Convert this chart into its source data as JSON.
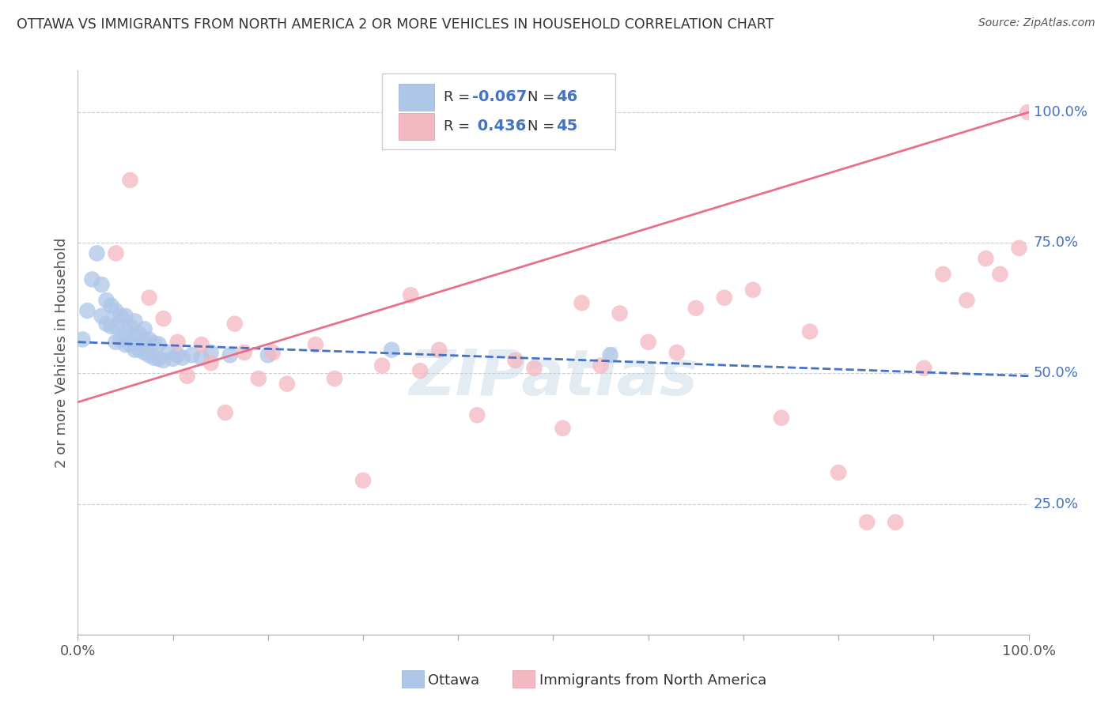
{
  "title": "OTTAWA VS IMMIGRANTS FROM NORTH AMERICA 2 OR MORE VEHICLES IN HOUSEHOLD CORRELATION CHART",
  "source": "Source: ZipAtlas.com",
  "ylabel": "2 or more Vehicles in Household",
  "xlim": [
    0,
    1.0
  ],
  "ylim": [
    0,
    1.08
  ],
  "ytick_labels_right": [
    "100.0%",
    "75.0%",
    "50.0%",
    "25.0%"
  ],
  "ytick_positions_right": [
    1.0,
    0.75,
    0.5,
    0.25
  ],
  "r_ottawa": -0.067,
  "n_ottawa": 46,
  "r_immigrant": 0.436,
  "n_immigrant": 45,
  "ottawa_color": "#aec6e8",
  "immigrant_color": "#f4b8c1",
  "trend_ottawa_color": "#4472c4",
  "trend_immigrant_color": "#e8708a",
  "watermark": "ZIPatlas",
  "background_color": "#ffffff",
  "grid_color": "#cccccc",
  "ottawa_x": [
    0.005,
    0.01,
    0.015,
    0.02,
    0.025,
    0.025,
    0.03,
    0.03,
    0.035,
    0.035,
    0.04,
    0.04,
    0.04,
    0.045,
    0.045,
    0.05,
    0.05,
    0.05,
    0.055,
    0.055,
    0.06,
    0.06,
    0.06,
    0.065,
    0.065,
    0.07,
    0.07,
    0.07,
    0.075,
    0.075,
    0.08,
    0.08,
    0.085,
    0.085,
    0.09,
    0.095,
    0.1,
    0.105,
    0.11,
    0.12,
    0.13,
    0.14,
    0.16,
    0.2,
    0.33,
    0.56
  ],
  "ottawa_y": [
    0.565,
    0.62,
    0.68,
    0.73,
    0.67,
    0.61,
    0.595,
    0.64,
    0.59,
    0.63,
    0.56,
    0.59,
    0.62,
    0.565,
    0.61,
    0.555,
    0.58,
    0.61,
    0.555,
    0.59,
    0.545,
    0.57,
    0.6,
    0.545,
    0.575,
    0.54,
    0.56,
    0.585,
    0.535,
    0.565,
    0.53,
    0.558,
    0.528,
    0.556,
    0.525,
    0.54,
    0.528,
    0.535,
    0.53,
    0.535,
    0.53,
    0.54,
    0.535,
    0.535,
    0.545,
    0.535
  ],
  "immigrant_x": [
    0.04,
    0.055,
    0.075,
    0.09,
    0.105,
    0.115,
    0.13,
    0.14,
    0.155,
    0.165,
    0.175,
    0.19,
    0.205,
    0.22,
    0.25,
    0.27,
    0.3,
    0.32,
    0.35,
    0.36,
    0.38,
    0.42,
    0.46,
    0.48,
    0.51,
    0.53,
    0.55,
    0.57,
    0.6,
    0.63,
    0.65,
    0.68,
    0.71,
    0.74,
    0.77,
    0.8,
    0.83,
    0.86,
    0.89,
    0.91,
    0.935,
    0.955,
    0.97,
    0.99,
    0.999
  ],
  "immigrant_y": [
    0.73,
    0.87,
    0.645,
    0.605,
    0.56,
    0.495,
    0.555,
    0.52,
    0.425,
    0.595,
    0.54,
    0.49,
    0.54,
    0.48,
    0.555,
    0.49,
    0.295,
    0.515,
    0.65,
    0.505,
    0.545,
    0.42,
    0.525,
    0.51,
    0.395,
    0.635,
    0.515,
    0.615,
    0.56,
    0.54,
    0.625,
    0.645,
    0.66,
    0.415,
    0.58,
    0.31,
    0.215,
    0.215,
    0.51,
    0.69,
    0.64,
    0.72,
    0.69,
    0.74,
    1.0
  ],
  "trend_immigrant_start_y": 0.445,
  "trend_immigrant_end_y": 1.0,
  "trend_ottawa_start_y": 0.56,
  "trend_ottawa_end_y": 0.495
}
